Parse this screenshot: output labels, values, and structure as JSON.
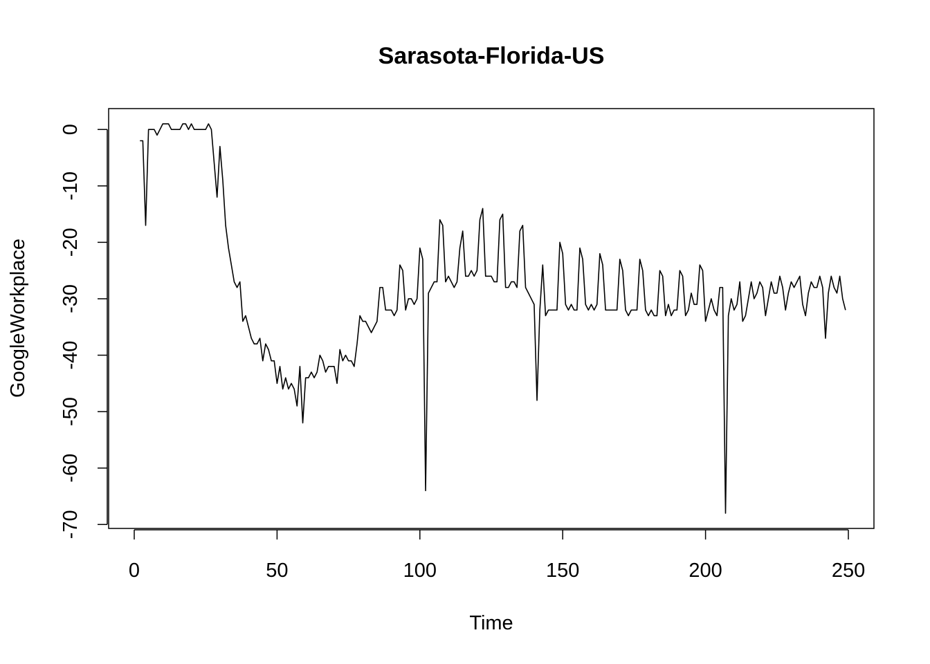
{
  "chart_data": {
    "type": "line",
    "title": "Sarasota-Florida-US",
    "xlabel": "Time",
    "ylabel": "GoogleWorkplace",
    "xlim": [
      -8.96,
      258.96
    ],
    "ylim": [
      -70.7,
      3.7
    ],
    "x_ticks": [
      0,
      50,
      100,
      150,
      200,
      250
    ],
    "y_ticks": [
      0,
      -10,
      -20,
      -30,
      -40,
      -50,
      -60,
      -70
    ],
    "grid": false,
    "series": [
      {
        "x_start": 2,
        "values": [
          -2,
          -2,
          -17,
          0,
          0,
          0,
          -1,
          0,
          1,
          1,
          1,
          0,
          0,
          0,
          0,
          1,
          1,
          0,
          1,
          0,
          0,
          0,
          0,
          0,
          1,
          0,
          -6,
          -12,
          -3,
          -9,
          -17,
          -21,
          -24,
          -27,
          -28,
          -27,
          -34,
          -33,
          -35,
          -37,
          -38,
          -38,
          -37,
          -41,
          -38,
          -39,
          -41,
          -41,
          -45,
          -42,
          -46,
          -44,
          -46,
          -45,
          -46,
          -49,
          -42,
          -52,
          -44,
          -44,
          -43,
          -44,
          -43,
          -40,
          -41,
          -43,
          -42,
          -42,
          -42,
          -45,
          -39,
          -41,
          -40,
          -41,
          -41,
          -42,
          -38,
          -33,
          -34,
          -34,
          -35,
          -36,
          -35,
          -34,
          -28,
          -28,
          -32,
          -32,
          -32,
          -33,
          -32,
          -24,
          -25,
          -32,
          -30,
          -30,
          -31,
          -30,
          -21,
          -23,
          -64,
          -29,
          -28,
          -27,
          -27,
          -16,
          -17,
          -27,
          -26,
          -27,
          -28,
          -27,
          -21,
          -18,
          -26,
          -26,
          -25,
          -26,
          -25,
          -16,
          -14,
          -26,
          -26,
          -26,
          -27,
          -27,
          -16,
          -15,
          -28,
          -28,
          -27,
          -27,
          -28,
          -18,
          -17,
          -28,
          -29,
          -30,
          -31,
          -48,
          -32,
          -24,
          -33,
          -32,
          -32,
          -32,
          -32,
          -20,
          -22,
          -31,
          -32,
          -31,
          -32,
          -32,
          -21,
          -23,
          -31,
          -32,
          -31,
          -32,
          -31,
          -22,
          -24,
          -32,
          -32,
          -32,
          -32,
          -32,
          -23,
          -25,
          -32,
          -33,
          -32,
          -32,
          -32,
          -23,
          -25,
          -32,
          -33,
          -32,
          -33,
          -33,
          -25,
          -26,
          -33,
          -31,
          -33,
          -32,
          -32,
          -25,
          -26,
          -33,
          -32,
          -29,
          -31,
          -31,
          -24,
          -25,
          -34,
          -32,
          -30,
          -32,
          -33,
          -28,
          -28,
          -68,
          -33,
          -30,
          -32,
          -31,
          -27,
          -34,
          -33,
          -30,
          -27,
          -30,
          -29,
          -27,
          -28,
          -33,
          -30,
          -27,
          -29,
          -29,
          -26,
          -28,
          -32,
          -29,
          -27,
          -28,
          -27,
          -26,
          -31,
          -33,
          -29,
          -27,
          -28,
          -28,
          -26,
          -28,
          -37,
          -29,
          -26,
          -28,
          -29,
          -26,
          -30,
          -32
        ]
      }
    ]
  }
}
